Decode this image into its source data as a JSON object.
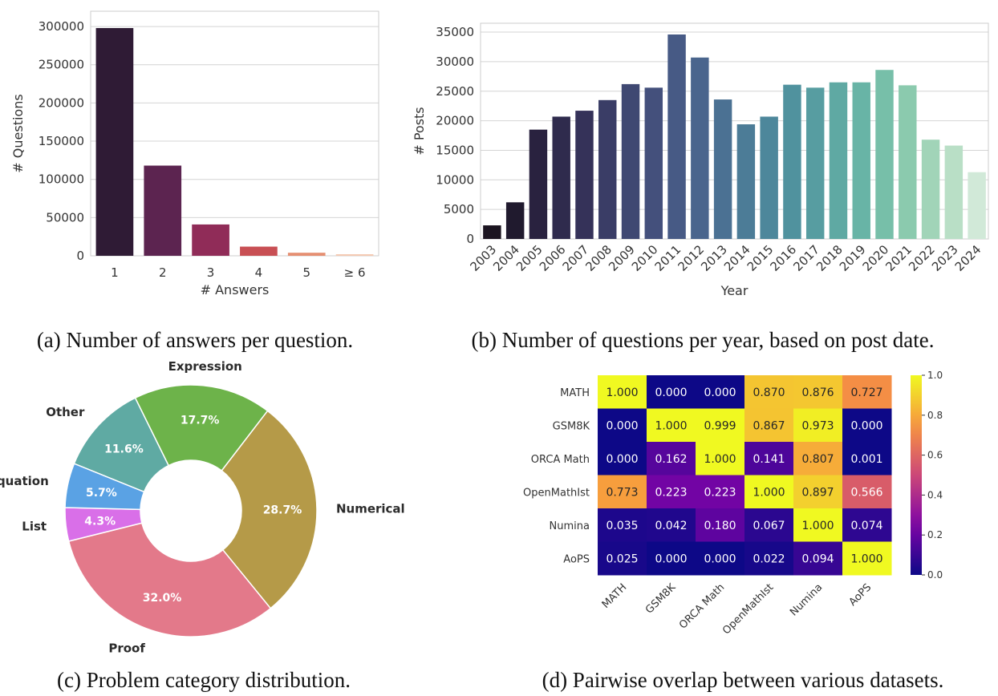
{
  "chart_data": [
    {
      "id": "a",
      "type": "bar",
      "caption": "(a) Number of answers per question.",
      "xlabel": "# Answers",
      "ylabel": "# Questions",
      "categories": [
        "1",
        "2",
        "3",
        "4",
        "5",
        "≥ 6"
      ],
      "values": [
        298000,
        118000,
        41000,
        12000,
        4000,
        2000
      ],
      "ylim": [
        0,
        320000
      ],
      "yticks": [
        0,
        50000,
        100000,
        150000,
        200000,
        250000,
        300000
      ],
      "grid": true,
      "colors": [
        "#2f1b35",
        "#5c2450",
        "#902c58",
        "#c84f54",
        "#e58f72",
        "#f4c8b0"
      ]
    },
    {
      "id": "b",
      "type": "bar",
      "caption": "(b) Number of questions per year, based on post date.",
      "xlabel": "Year",
      "ylabel": "# Posts",
      "categories": [
        "2003",
        "2004",
        "2005",
        "2006",
        "2007",
        "2008",
        "2009",
        "2010",
        "2011",
        "2012",
        "2013",
        "2014",
        "2015",
        "2016",
        "2017",
        "2018",
        "2019",
        "2020",
        "2021",
        "2022",
        "2023",
        "2024"
      ],
      "values": [
        2300,
        6200,
        18500,
        20700,
        21700,
        23500,
        26200,
        25600,
        34600,
        30700,
        23600,
        19400,
        20700,
        26100,
        25600,
        26500,
        26500,
        28600,
        26000,
        16800,
        15800,
        11300
      ],
      "ylim": [
        0,
        36500
      ],
      "yticks": [
        0,
        5000,
        10000,
        15000,
        20000,
        25000,
        30000,
        35000
      ],
      "grid": true,
      "colors": [
        "#1b1420",
        "#201a2e",
        "#29223f",
        "#2f2b4d",
        "#353259",
        "#3a3d66",
        "#3f4872",
        "#44507c",
        "#475a85",
        "#4a658d",
        "#4b7193",
        "#4c7c97",
        "#4d879b",
        "#50929e",
        "#579da1",
        "#5fa9a3",
        "#68b4a6",
        "#77bfa9",
        "#8bcaae",
        "#a1d4b8",
        "#b9dfc6",
        "#d1e9d8"
      ]
    },
    {
      "id": "c",
      "type": "pie",
      "caption": "(c) Problem category distribution.",
      "donut": true,
      "slices": [
        {
          "label": "Other",
          "value": 11.6,
          "text": "11.6%",
          "color": "#5faaa3"
        },
        {
          "label": "Expression",
          "value": 17.7,
          "text": "17.7%",
          "color": "#6db34a"
        },
        {
          "label": "Numerical",
          "value": 28.7,
          "text": "28.7%",
          "color": "#b59a48"
        },
        {
          "label": "Proof",
          "value": 32.0,
          "text": "32.0%",
          "color": "#e3798a"
        },
        {
          "label": "List",
          "value": 4.3,
          "text": "4.3%",
          "color": "#d96fe8"
        },
        {
          "label": "Equation",
          "value": 5.7,
          "text": "5.7%",
          "color": "#5aa2e4"
        }
      ]
    },
    {
      "id": "d",
      "type": "heatmap",
      "caption": "(d) Pairwise overlap between various datasets.",
      "rows": [
        "MATH",
        "GSM8K",
        "ORCA Math",
        "OpenMathIst",
        "Numina",
        "AoPS"
      ],
      "cols": [
        "MATH",
        "GSM8K",
        "ORCA Math",
        "OpenMathIst",
        "Numina",
        "AoPS"
      ],
      "values": [
        [
          1.0,
          0.0,
          0.0,
          0.87,
          0.876,
          0.727
        ],
        [
          0.0,
          1.0,
          0.999,
          0.867,
          0.973,
          0.0
        ],
        [
          0.0,
          0.162,
          1.0,
          0.141,
          0.807,
          0.001
        ],
        [
          0.773,
          0.223,
          0.223,
          1.0,
          0.897,
          0.566
        ],
        [
          0.035,
          0.042,
          0.18,
          0.067,
          1.0,
          0.074
        ],
        [
          0.025,
          0.0,
          0.0,
          0.022,
          0.094,
          1.0
        ]
      ],
      "value_labels": [
        [
          "1.000",
          "0.000",
          "0.000",
          "0.870",
          "0.876",
          "0.727"
        ],
        [
          "0.000",
          "1.000",
          "0.999",
          "0.867",
          "0.973",
          "0.000"
        ],
        [
          "0.000",
          "0.162",
          "1.000",
          "0.141",
          "0.807",
          "0.001"
        ],
        [
          "0.773",
          "0.223",
          "0.223",
          "1.000",
          "0.897",
          "0.566"
        ],
        [
          "0.035",
          "0.042",
          "0.180",
          "0.067",
          "1.000",
          "0.074"
        ],
        [
          "0.025",
          "0.000",
          "0.000",
          "0.022",
          "0.094",
          "1.000"
        ]
      ],
      "colorbar": {
        "min": 0.0,
        "max": 1.0,
        "ticks": [
          "0.0",
          "0.2",
          "0.4",
          "0.6",
          "0.8",
          "1.0"
        ],
        "colormap": "plasma"
      }
    }
  ]
}
